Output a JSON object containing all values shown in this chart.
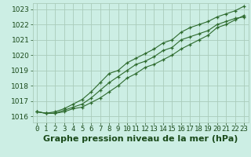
{
  "title": "Graphe pression niveau de la mer (hPa)",
  "xlabel_hours": [
    0,
    1,
    2,
    3,
    4,
    5,
    6,
    7,
    8,
    9,
    10,
    11,
    12,
    13,
    14,
    15,
    16,
    17,
    18,
    19,
    20,
    21,
    22,
    23
  ],
  "line_top": [
    1016.3,
    1016.2,
    1016.3,
    1016.5,
    1016.8,
    1017.1,
    1017.6,
    1018.2,
    1018.8,
    1019.0,
    1019.5,
    1019.8,
    1020.1,
    1020.4,
    1020.8,
    1021.0,
    1021.5,
    1021.8,
    1022.0,
    1022.2,
    1022.5,
    1022.7,
    1022.9,
    1023.2
  ],
  "line_mid": [
    1016.3,
    1016.2,
    1016.2,
    1016.4,
    1016.6,
    1016.8,
    1017.2,
    1017.7,
    1018.2,
    1018.6,
    1019.0,
    1019.4,
    1019.6,
    1019.9,
    1020.3,
    1020.5,
    1021.0,
    1021.2,
    1021.4,
    1021.6,
    1022.0,
    1022.2,
    1022.4,
    1022.5
  ],
  "line_bot": [
    1016.3,
    1016.2,
    1016.2,
    1016.3,
    1016.5,
    1016.6,
    1016.9,
    1017.2,
    1017.6,
    1018.0,
    1018.5,
    1018.8,
    1019.2,
    1019.4,
    1019.7,
    1020.0,
    1020.4,
    1020.7,
    1021.0,
    1021.3,
    1021.8,
    1022.0,
    1022.3,
    1022.6
  ],
  "ylim": [
    1015.6,
    1023.4
  ],
  "yticks": [
    1016,
    1017,
    1018,
    1019,
    1020,
    1021,
    1022,
    1023
  ],
  "line_color": "#2d6a2d",
  "bg_color": "#cceee4",
  "grid_color": "#aaccbb",
  "title_color": "#1a4a1a",
  "title_fontsize": 8.0,
  "tick_fontsize": 6.5
}
